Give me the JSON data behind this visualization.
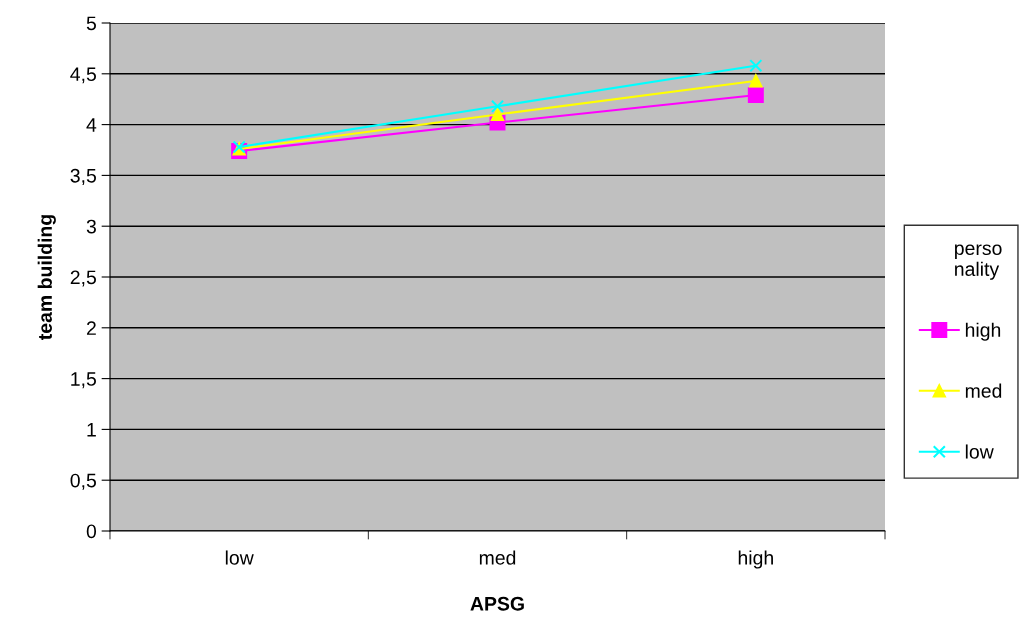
{
  "chart_data": {
    "type": "line",
    "xlabel": "APSG",
    "ylabel": "team building",
    "legend_title": "perso\nnality",
    "categories": [
      "low",
      "med",
      "high"
    ],
    "series": [
      {
        "name": "high",
        "color": "#ff00ff",
        "marker": "square",
        "values": [
          3.74,
          4.02,
          4.29
        ]
      },
      {
        "name": "med",
        "color": "#ffff00",
        "marker": "triangle",
        "values": [
          3.76,
          4.1,
          4.43
        ]
      },
      {
        "name": "low",
        "color": "#00ffff",
        "marker": "cross",
        "values": [
          3.78,
          4.18,
          4.58
        ]
      }
    ],
    "ylim": [
      0,
      5
    ],
    "yticks": [
      0,
      {
        "value": 0.5,
        "label": "0,5"
      },
      1,
      {
        "value": 1.5,
        "label": "1,5"
      },
      2,
      {
        "value": 2.5,
        "label": "2,5"
      },
      3,
      {
        "value": 3.5,
        "label": "3,5"
      },
      4,
      {
        "value": 4.5,
        "label": "4,5"
      },
      5
    ],
    "grid": "y",
    "legend": "right",
    "line_style": "solid"
  }
}
